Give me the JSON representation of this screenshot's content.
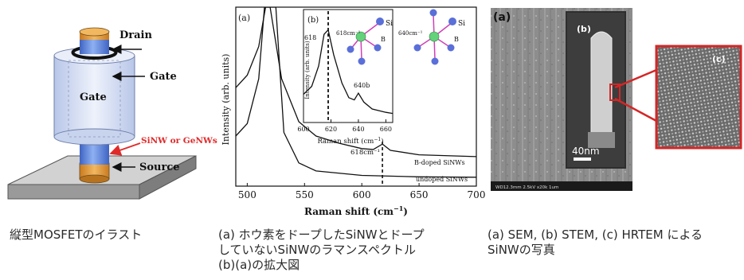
{
  "figure1": {
    "labels": {
      "drain": "Drain",
      "gate_top": "Gate",
      "gate_body": "Gate",
      "nanowire": "SiNW or GeNWs",
      "source": "Source"
    },
    "caption": "縦型MOSFETのイラスト",
    "colors": {
      "drain_top": "#e39a3e",
      "wire": "#5b82d8",
      "gate_shell": "#d6dff3",
      "nanowire_label": "#e02a2a",
      "substrate": "#b5b5b5"
    }
  },
  "figure2": {
    "panel_a_label": "(a)",
    "panel_b_label": "(b)",
    "caption_lines": [
      "(a) ホウ素をドープしたSiNWとドープ",
      "していないSiNWのラマンスペクトル",
      "(b)(a)の拡大図"
    ],
    "chart_data": [
      {
        "type": "line",
        "title": "",
        "xlabel": "Raman shift (cm⁻¹)",
        "ylabel": "Intensity (arb. units)",
        "xlim": [
          490,
          700
        ],
        "x_ticks": [
          500,
          550,
          600,
          650,
          700
        ],
        "series": [
          {
            "name": "B-doped SiNWs",
            "points": [
              [
                490,
                0.55
              ],
              [
                500,
                0.62
              ],
              [
                510,
                0.78
              ],
              [
                516,
                1.0
              ],
              [
                520,
                1.0
              ],
              [
                530,
                0.6
              ],
              [
                545,
                0.36
              ],
              [
                560,
                0.28
              ],
              [
                580,
                0.24
              ],
              [
                600,
                0.21
              ],
              [
                610,
                0.205
              ],
              [
                618,
                0.235
              ],
              [
                625,
                0.2
              ],
              [
                650,
                0.175
              ],
              [
                700,
                0.165
              ]
            ]
          },
          {
            "name": "undoped SiNWs",
            "points": [
              [
                490,
                0.28
              ],
              [
                500,
                0.35
              ],
              [
                510,
                0.6
              ],
              [
                515,
                1.0
              ],
              [
                525,
                1.0
              ],
              [
                532,
                0.3
              ],
              [
                545,
                0.13
              ],
              [
                560,
                0.085
              ],
              [
                600,
                0.06
              ],
              [
                650,
                0.052
              ],
              [
                700,
                0.05
              ]
            ]
          }
        ],
        "annotations": {
          "peak_label": "618cm⁻¹"
        }
      },
      {
        "type": "line",
        "title": "",
        "xlabel": "Raman shift (cm⁻¹)",
        "ylabel": "Intensity (arb. units)",
        "xlim": [
          600,
          665
        ],
        "x_ticks": [
          600,
          620,
          640,
          660
        ],
        "series": [
          {
            "name": "",
            "points": [
              [
                600,
                0.25
              ],
              [
                606,
                0.32
              ],
              [
                611,
                0.5
              ],
              [
                615,
                0.78
              ],
              [
                618,
                0.82
              ],
              [
                622,
                0.6
              ],
              [
                628,
                0.35
              ],
              [
                633,
                0.22
              ],
              [
                637,
                0.2
              ],
              [
                640,
                0.26
              ],
              [
                644,
                0.18
              ],
              [
                650,
                0.12
              ],
              [
                660,
                0.09
              ],
              [
                665,
                0.08
              ]
            ]
          }
        ],
        "annotations": {
          "peak1": "618",
          "peak2": "640b"
        }
      }
    ],
    "inset_molecules": {
      "left_label": "618cm⁻¹",
      "right_label": "640cm⁻¹",
      "si": "Si",
      "b": "B",
      "colors": {
        "si_atom": "#5a6fd8",
        "center_atom": "#63d27a",
        "bond": "#d040b8"
      }
    }
  },
  "figure3": {
    "panel_a_label": "(a)",
    "panel_b_label": "(b)",
    "panel_c_label": "(c)",
    "scalebar_label": "40nm",
    "sem_footer": "WD12.3mm  2.5kV x20k        1um",
    "caption_lines": [
      "(a) SEM, (b) STEM, (c) HRTEM による",
      "SiNWの写真"
    ],
    "colors": {
      "callout": "#d42626"
    }
  }
}
